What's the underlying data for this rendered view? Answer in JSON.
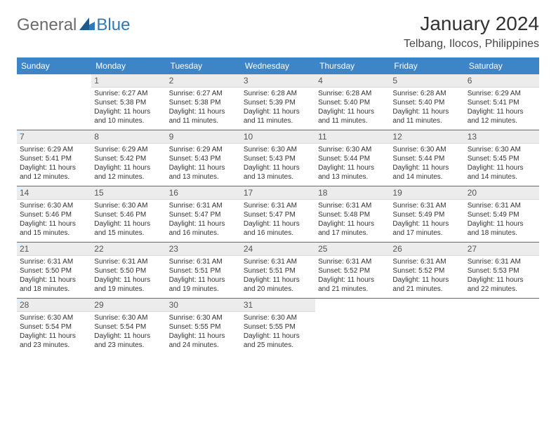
{
  "brand": {
    "general": "General",
    "blue": "Blue"
  },
  "title": "January 2024",
  "location": "Telbang, Ilocos, Philippines",
  "colors": {
    "header_bg": "#3d85c6",
    "header_text": "#ffffff",
    "brand_gray": "#6b6b6b",
    "brand_blue": "#2f78b9",
    "daynum_bg": "#ececec",
    "body_text": "#333333",
    "week_sep": "#2f78b9"
  },
  "dayHeaders": [
    "Sunday",
    "Monday",
    "Tuesday",
    "Wednesday",
    "Thursday",
    "Friday",
    "Saturday"
  ],
  "weeks": [
    [
      null,
      {
        "n": "1",
        "sunrise": "Sunrise: 6:27 AM",
        "sunset": "Sunset: 5:38 PM",
        "daylight": "Daylight: 11 hours and 10 minutes."
      },
      {
        "n": "2",
        "sunrise": "Sunrise: 6:27 AM",
        "sunset": "Sunset: 5:38 PM",
        "daylight": "Daylight: 11 hours and 11 minutes."
      },
      {
        "n": "3",
        "sunrise": "Sunrise: 6:28 AM",
        "sunset": "Sunset: 5:39 PM",
        "daylight": "Daylight: 11 hours and 11 minutes."
      },
      {
        "n": "4",
        "sunrise": "Sunrise: 6:28 AM",
        "sunset": "Sunset: 5:40 PM",
        "daylight": "Daylight: 11 hours and 11 minutes."
      },
      {
        "n": "5",
        "sunrise": "Sunrise: 6:28 AM",
        "sunset": "Sunset: 5:40 PM",
        "daylight": "Daylight: 11 hours and 11 minutes."
      },
      {
        "n": "6",
        "sunrise": "Sunrise: 6:29 AM",
        "sunset": "Sunset: 5:41 PM",
        "daylight": "Daylight: 11 hours and 12 minutes."
      }
    ],
    [
      {
        "n": "7",
        "sunrise": "Sunrise: 6:29 AM",
        "sunset": "Sunset: 5:41 PM",
        "daylight": "Daylight: 11 hours and 12 minutes."
      },
      {
        "n": "8",
        "sunrise": "Sunrise: 6:29 AM",
        "sunset": "Sunset: 5:42 PM",
        "daylight": "Daylight: 11 hours and 12 minutes."
      },
      {
        "n": "9",
        "sunrise": "Sunrise: 6:29 AM",
        "sunset": "Sunset: 5:43 PM",
        "daylight": "Daylight: 11 hours and 13 minutes."
      },
      {
        "n": "10",
        "sunrise": "Sunrise: 6:30 AM",
        "sunset": "Sunset: 5:43 PM",
        "daylight": "Daylight: 11 hours and 13 minutes."
      },
      {
        "n": "11",
        "sunrise": "Sunrise: 6:30 AM",
        "sunset": "Sunset: 5:44 PM",
        "daylight": "Daylight: 11 hours and 13 minutes."
      },
      {
        "n": "12",
        "sunrise": "Sunrise: 6:30 AM",
        "sunset": "Sunset: 5:44 PM",
        "daylight": "Daylight: 11 hours and 14 minutes."
      },
      {
        "n": "13",
        "sunrise": "Sunrise: 6:30 AM",
        "sunset": "Sunset: 5:45 PM",
        "daylight": "Daylight: 11 hours and 14 minutes."
      }
    ],
    [
      {
        "n": "14",
        "sunrise": "Sunrise: 6:30 AM",
        "sunset": "Sunset: 5:46 PM",
        "daylight": "Daylight: 11 hours and 15 minutes."
      },
      {
        "n": "15",
        "sunrise": "Sunrise: 6:30 AM",
        "sunset": "Sunset: 5:46 PM",
        "daylight": "Daylight: 11 hours and 15 minutes."
      },
      {
        "n": "16",
        "sunrise": "Sunrise: 6:31 AM",
        "sunset": "Sunset: 5:47 PM",
        "daylight": "Daylight: 11 hours and 16 minutes."
      },
      {
        "n": "17",
        "sunrise": "Sunrise: 6:31 AM",
        "sunset": "Sunset: 5:47 PM",
        "daylight": "Daylight: 11 hours and 16 minutes."
      },
      {
        "n": "18",
        "sunrise": "Sunrise: 6:31 AM",
        "sunset": "Sunset: 5:48 PM",
        "daylight": "Daylight: 11 hours and 17 minutes."
      },
      {
        "n": "19",
        "sunrise": "Sunrise: 6:31 AM",
        "sunset": "Sunset: 5:49 PM",
        "daylight": "Daylight: 11 hours and 17 minutes."
      },
      {
        "n": "20",
        "sunrise": "Sunrise: 6:31 AM",
        "sunset": "Sunset: 5:49 PM",
        "daylight": "Daylight: 11 hours and 18 minutes."
      }
    ],
    [
      {
        "n": "21",
        "sunrise": "Sunrise: 6:31 AM",
        "sunset": "Sunset: 5:50 PM",
        "daylight": "Daylight: 11 hours and 18 minutes."
      },
      {
        "n": "22",
        "sunrise": "Sunrise: 6:31 AM",
        "sunset": "Sunset: 5:50 PM",
        "daylight": "Daylight: 11 hours and 19 minutes."
      },
      {
        "n": "23",
        "sunrise": "Sunrise: 6:31 AM",
        "sunset": "Sunset: 5:51 PM",
        "daylight": "Daylight: 11 hours and 19 minutes."
      },
      {
        "n": "24",
        "sunrise": "Sunrise: 6:31 AM",
        "sunset": "Sunset: 5:51 PM",
        "daylight": "Daylight: 11 hours and 20 minutes."
      },
      {
        "n": "25",
        "sunrise": "Sunrise: 6:31 AM",
        "sunset": "Sunset: 5:52 PM",
        "daylight": "Daylight: 11 hours and 21 minutes."
      },
      {
        "n": "26",
        "sunrise": "Sunrise: 6:31 AM",
        "sunset": "Sunset: 5:52 PM",
        "daylight": "Daylight: 11 hours and 21 minutes."
      },
      {
        "n": "27",
        "sunrise": "Sunrise: 6:31 AM",
        "sunset": "Sunset: 5:53 PM",
        "daylight": "Daylight: 11 hours and 22 minutes."
      }
    ],
    [
      {
        "n": "28",
        "sunrise": "Sunrise: 6:30 AM",
        "sunset": "Sunset: 5:54 PM",
        "daylight": "Daylight: 11 hours and 23 minutes."
      },
      {
        "n": "29",
        "sunrise": "Sunrise: 6:30 AM",
        "sunset": "Sunset: 5:54 PM",
        "daylight": "Daylight: 11 hours and 23 minutes."
      },
      {
        "n": "30",
        "sunrise": "Sunrise: 6:30 AM",
        "sunset": "Sunset: 5:55 PM",
        "daylight": "Daylight: 11 hours and 24 minutes."
      },
      {
        "n": "31",
        "sunrise": "Sunrise: 6:30 AM",
        "sunset": "Sunset: 5:55 PM",
        "daylight": "Daylight: 11 hours and 25 minutes."
      },
      null,
      null,
      null
    ]
  ]
}
